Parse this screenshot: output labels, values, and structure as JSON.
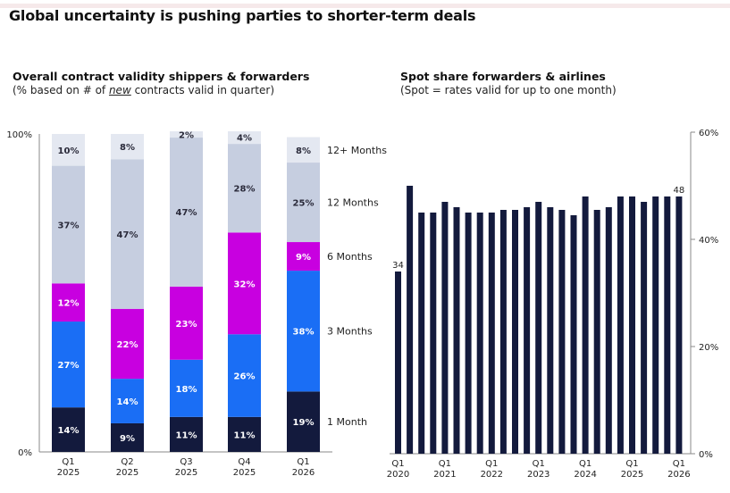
{
  "page": {
    "title": "Global uncertainty is pushing parties to shorter-term deals"
  },
  "left_panel": {
    "title": "Overall contract validity shippers & forwarders",
    "note_prefix": "(% based on # of ",
    "note_emph": "new",
    "note_suffix": " contracts valid in quarter)"
  },
  "right_panel": {
    "title": "Spot share forwarders & airlines",
    "note": "(Spot = rates valid for up to one month)"
  },
  "chart_data": [
    {
      "type": "bar",
      "stacked": true,
      "title": "Overall contract validity shippers & forwarders",
      "subtitle": "(% based on # of new contracts valid in quarter)",
      "xlabel": "",
      "ylabel": "",
      "ylim": [
        0,
        100
      ],
      "yticks": [
        "0%",
        "100%"
      ],
      "categories": [
        {
          "q": "Q1",
          "y": "2025"
        },
        {
          "q": "Q2",
          "y": "2025"
        },
        {
          "q": "Q3",
          "y": "2025"
        },
        {
          "q": "Q4",
          "y": "2025"
        },
        {
          "q": "Q1",
          "y": "2026"
        }
      ],
      "series": [
        {
          "name": "1 Month",
          "color": "#131a3d",
          "label_color": "#ffffff",
          "values": [
            14,
            9,
            11,
            11,
            19
          ]
        },
        {
          "name": "3 Months",
          "color": "#1a6ef5",
          "label_color": "#ffffff",
          "values": [
            27,
            14,
            18,
            26,
            38
          ]
        },
        {
          "name": "6 Months",
          "color": "#c800e0",
          "label_color": "#ffffff",
          "values": [
            12,
            22,
            23,
            32,
            9
          ]
        },
        {
          "name": "12 Months",
          "color": "#c6cee0",
          "label_color": "#2a2a3a",
          "values": [
            37,
            47,
            47,
            28,
            25
          ]
        },
        {
          "name": "12+ Months",
          "color": "#e4e8f1",
          "label_color": "#2a2a3a",
          "values": [
            10,
            8,
            2,
            4,
            8
          ]
        }
      ],
      "legend": "right"
    },
    {
      "type": "bar",
      "title": "Spot share forwarders & airlines",
      "subtitle": "(Spot = rates valid for up to one month)",
      "xlabel": "",
      "ylabel": "",
      "ylim": [
        0,
        60
      ],
      "yticks": [
        "0%",
        "20%",
        "40%",
        "60%"
      ],
      "ytick_values": [
        0,
        20,
        40,
        60
      ],
      "y_axis_side": "right",
      "bar_color": "#131a3d",
      "x_labels": [
        {
          "index": 0,
          "q": "Q1",
          "y": "2020"
        },
        {
          "index": 4,
          "q": "Q1",
          "y": "2021"
        },
        {
          "index": 8,
          "q": "Q1",
          "y": "2022"
        },
        {
          "index": 12,
          "q": "Q1",
          "y": "2023"
        },
        {
          "index": 16,
          "q": "Q1",
          "y": "2024"
        },
        {
          "index": 20,
          "q": "Q1",
          "y": "2025"
        },
        {
          "index": 24,
          "q": "Q1",
          "y": "2026"
        }
      ],
      "categories": [
        "Q1 2020",
        "Q2 2020",
        "Q3 2020",
        "Q4 2020",
        "Q1 2021",
        "Q2 2021",
        "Q3 2021",
        "Q4 2021",
        "Q1 2022",
        "Q2 2022",
        "Q3 2022",
        "Q4 2022",
        "Q1 2023",
        "Q2 2023",
        "Q3 2023",
        "Q4 2023",
        "Q1 2024",
        "Q2 2024",
        "Q3 2024",
        "Q4 2024",
        "Q1 2025",
        "Q2 2025",
        "Q3 2025",
        "Q4 2025",
        "Q1 2026"
      ],
      "values": [
        34,
        50,
        45,
        45,
        47,
        46,
        45,
        45,
        45,
        45.5,
        45.5,
        46,
        47,
        46,
        45.5,
        44.5,
        48,
        45.5,
        46,
        48,
        48,
        47,
        48,
        48,
        48
      ],
      "data_labels": [
        {
          "index": 0,
          "text": "34"
        },
        {
          "index": 24,
          "text": "48"
        }
      ]
    }
  ]
}
